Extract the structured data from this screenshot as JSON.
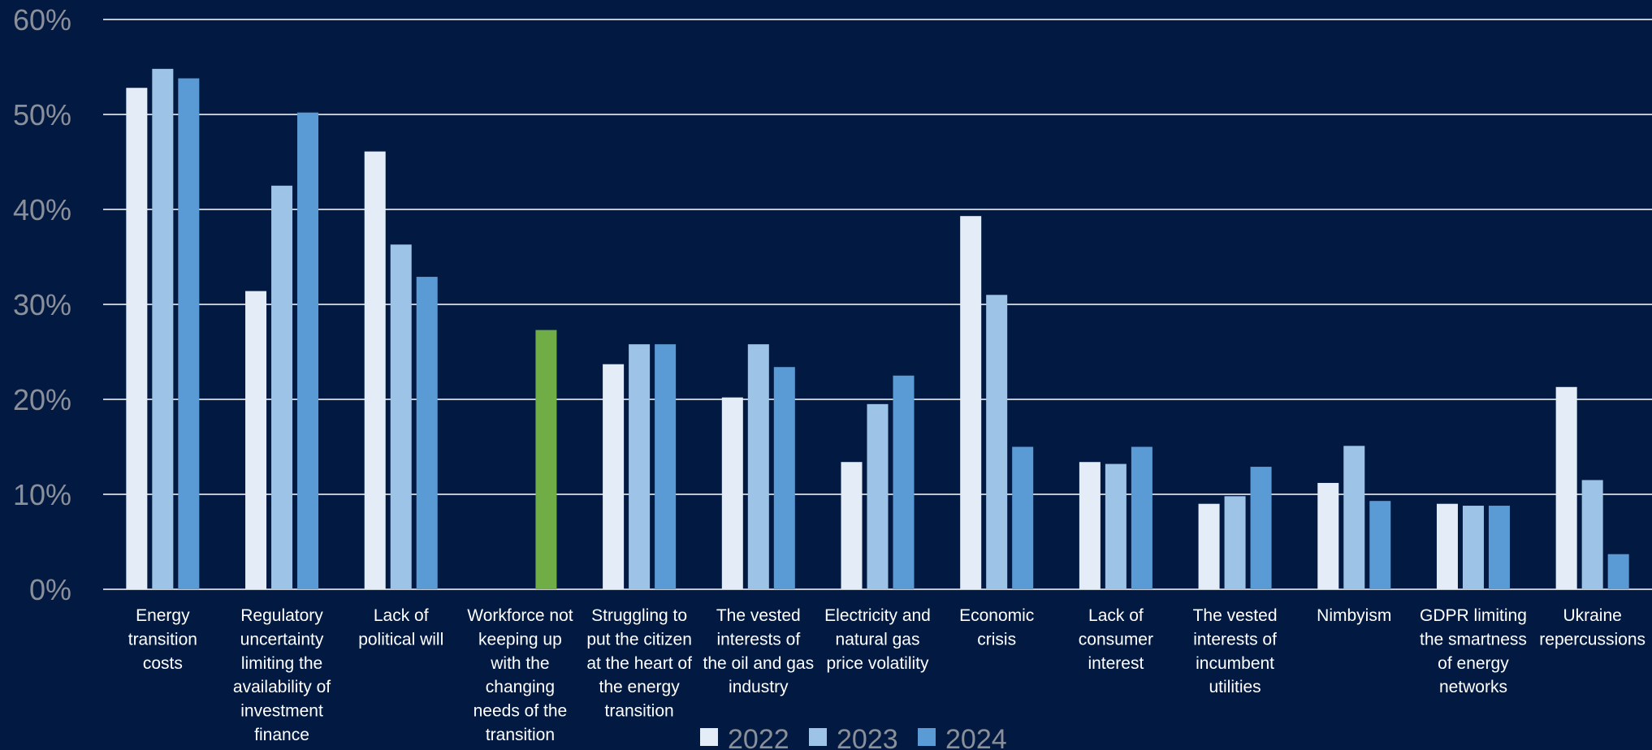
{
  "chart_data": {
    "type": "bar",
    "ylim": [
      0,
      60
    ],
    "yticks": [
      "0%",
      "10%",
      "20%",
      "30%",
      "40%",
      "50%",
      "60%"
    ],
    "grid": true,
    "legend_position": "bottom-center",
    "categories": [
      "Energy transition costs",
      "Regulatory uncertainty limiting the availability of investment finance",
      "Lack of political will",
      "Workforce not keeping up with the changing needs of the transition",
      "Struggling to put the citizen at the heart of the energy transition",
      "The vested interests of the oil and gas industry",
      "Electricity and natural gas price volatility",
      "Economic crisis",
      "Lack of consumer interest",
      "The vested interests of incumbent utilities",
      "Nimbyism",
      "GDPR limiting the smartness of energy networks",
      "Ukraine repercussions"
    ],
    "category_lines": [
      [
        "Energy",
        "transition",
        "costs"
      ],
      [
        "Regulatory",
        "uncertainty",
        "limiting the",
        "availability of",
        "investment",
        "finance"
      ],
      [
        "Lack of",
        "political will"
      ],
      [
        "Workforce not",
        "keeping up",
        "with the",
        "changing",
        "needs of the",
        "transition"
      ],
      [
        "Struggling to",
        "put the citizen",
        "at the heart of",
        "the energy",
        "transition"
      ],
      [
        "The vested",
        "interests of",
        "the oil and gas",
        "industry"
      ],
      [
        "Electricity and",
        "natural gas",
        "price volatility"
      ],
      [
        "Economic",
        "crisis"
      ],
      [
        "Lack of",
        "consumer",
        "interest"
      ],
      [
        "The vested",
        "interests of",
        "incumbent",
        "utilities"
      ],
      [
        "Nimbyism"
      ],
      [
        "GDPR limiting",
        "the smartness",
        "of energy",
        "networks"
      ],
      [
        "Ukraine",
        "repercussions"
      ]
    ],
    "series": [
      {
        "name": "2022",
        "color": "#e4ecf7",
        "values": [
          52.8,
          31.4,
          46.1,
          null,
          23.7,
          20.2,
          13.4,
          39.3,
          13.4,
          9.0,
          11.2,
          9.0,
          21.3
        ]
      },
      {
        "name": "2023",
        "color": "#9dc3e6",
        "values": [
          54.8,
          42.5,
          36.3,
          null,
          25.8,
          25.8,
          19.5,
          31.0,
          13.2,
          9.8,
          15.1,
          8.8,
          11.5
        ]
      },
      {
        "name": "2024",
        "color": "#5b9bd5",
        "values": [
          53.8,
          50.2,
          32.9,
          27.3,
          25.8,
          23.4,
          22.5,
          15.0,
          15.0,
          12.9,
          9.3,
          8.8,
          3.7
        ]
      }
    ],
    "highlight_color": "#70ad47"
  }
}
